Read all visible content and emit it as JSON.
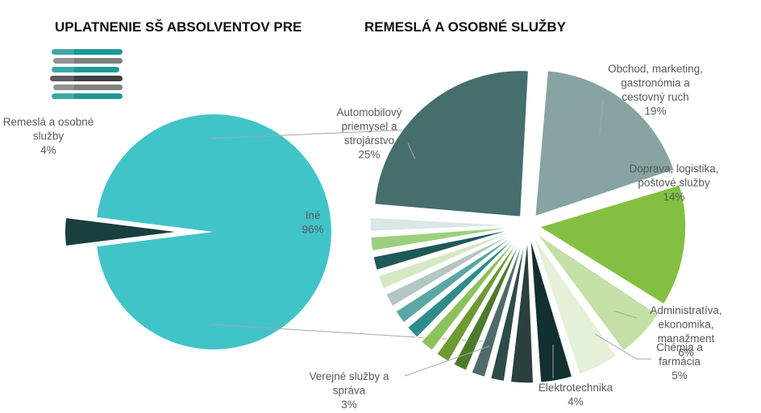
{
  "title_left": "UPLATNENIE SŠ ABSOLVENTOV PRE",
  "title_right": "REMESLÁ A OSOBNÉ SLUŽBY",
  "colors": {
    "teal_main": "#40c4c8",
    "dark_slice": "#17403f",
    "logo_teal": "#1a9a93",
    "logo_gray": "#7f7f7f",
    "logo_dark": "#404040"
  },
  "chart_data": [
    {
      "type": "pie",
      "title": "",
      "categories": [
        "Iné",
        "Remeslá a osobné služby"
      ],
      "values": [
        96,
        4
      ],
      "legend": "none"
    },
    {
      "type": "pie",
      "title": "",
      "categories": [
        "Automobilový priemysel a strojárstvo",
        "Obchod, marketing, gastronómia a cestovný ruch",
        "Doprava, logistika, poštové služby",
        "Administratíva, ekonomika, manažment",
        "Chémia a farmácia",
        "Elektrotechnika",
        "Verejné služby a správa"
      ],
      "values": [
        25,
        19,
        14,
        6,
        5,
        4,
        3
      ],
      "legend": "none"
    }
  ],
  "labels": {
    "ine": [
      "Iné",
      "96%"
    ],
    "remesla": [
      "Remeslá a osobné",
      "služby",
      "4%"
    ],
    "auto": [
      "Automobilový",
      "priemysel a",
      "strojárstvo",
      "25%"
    ],
    "obchod": [
      "Obchod, marketing,",
      "gastronómia a",
      "cestovný ruch",
      "19%"
    ],
    "doprava": [
      "Doprava, logistika,",
      "poštové služby",
      "14%"
    ],
    "admin": [
      "Administratíva,",
      "ekonomika,",
      "manažment",
      "6%"
    ],
    "chemia": [
      "Chémia a",
      "farmácia",
      "5%"
    ],
    "elektro": [
      "Elektrotechnika",
      "4%"
    ],
    "verejne": [
      "Verejné služby a",
      "správa",
      "3%"
    ]
  }
}
